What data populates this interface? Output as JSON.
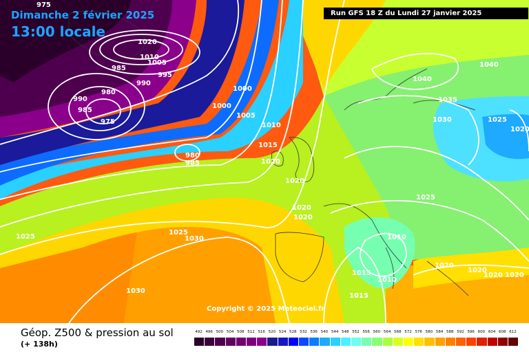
{
  "header": {
    "date": "Dimanche 2 février 2025",
    "time": "13:00 locale",
    "run": "Run GFS 18 Z du Lundi 27 janvier 2025"
  },
  "copyright": "Copyright © 2025 Meteociel.fr",
  "footer": {
    "title": "Géop. Z500 & pression au sol",
    "subtitle": "(+ 138h)"
  },
  "legend": {
    "values": [
      "492",
      "496",
      "500",
      "504",
      "508",
      "512",
      "516",
      "520",
      "524",
      "528",
      "532",
      "536",
      "540",
      "544",
      "548",
      "552",
      "556",
      "560",
      "564",
      "568",
      "572",
      "576",
      "580",
      "584",
      "588",
      "592",
      "596",
      "600",
      "604",
      "608",
      "612"
    ],
    "colors": [
      "#2a002a",
      "#3c003c",
      "#4e004e",
      "#600060",
      "#720072",
      "#7c007c",
      "#8a008a",
      "#1a1a90",
      "#1616c8",
      "#0000ff",
      "#0b48ff",
      "#0d7cff",
      "#1eaaff",
      "#2ad0ff",
      "#4ef0ff",
      "#6afff0",
      "#76ffb0",
      "#86ff70",
      "#a8ff40",
      "#d8ff20",
      "#ffff00",
      "#ffe000",
      "#ffc000",
      "#ffa000",
      "#ff8000",
      "#ff6000",
      "#ff4000",
      "#e02000",
      "#c00000",
      "#900000",
      "#600000"
    ]
  },
  "isobars": [
    "975",
    "1020",
    "1010",
    "1005",
    "985",
    "995",
    "990",
    "980",
    "990",
    "985",
    "975",
    "1000",
    "1000",
    "1005",
    "1010",
    "1015",
    "980",
    "985",
    "1020",
    "1020",
    "1020",
    "1020",
    "1025",
    "1030",
    "1025",
    "1030",
    "1040",
    "1040",
    "1035",
    "1030",
    "1025",
    "1020",
    "1025",
    "1010",
    "1015",
    "1010",
    "1015",
    "1020",
    "1020",
    "1020",
    "1020"
  ]
}
